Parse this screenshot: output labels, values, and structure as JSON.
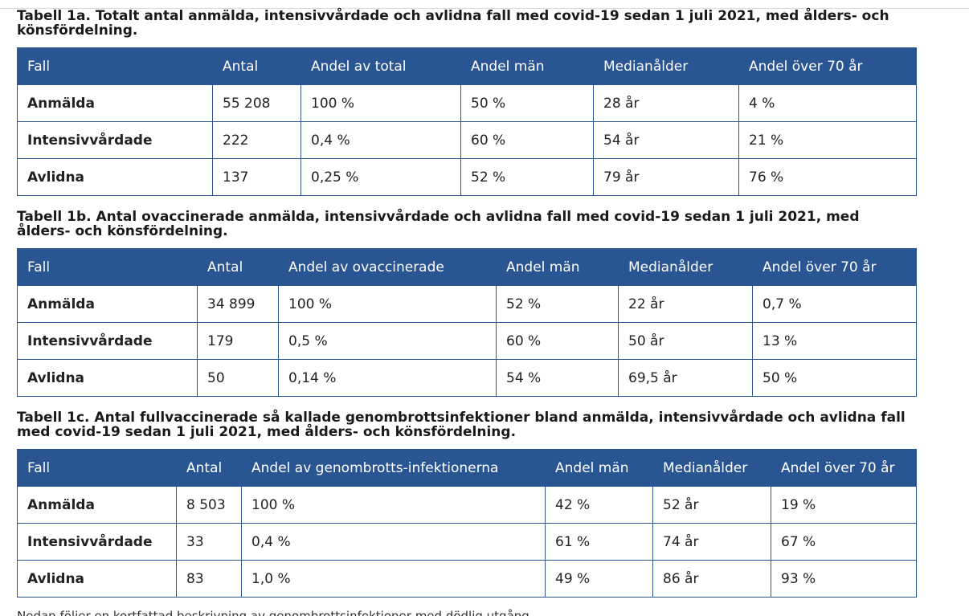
{
  "tables": [
    {
      "caption": "Tabell 1a. Totalt antal anmälda, intensivvårdade och avlidna fall med covid-19 sedan 1 juli 2021, med ålders- och könsfördelning.",
      "headers": [
        "Fall",
        "Antal",
        "Andel av total",
        "Andel män",
        "Medianålder",
        "Andel över 70 år"
      ],
      "rows": [
        [
          "Anmälda",
          "55 208",
          "100 %",
          "50 %",
          "28 år",
          "4 %"
        ],
        [
          "Intensivvårdade",
          "222",
          "0,4 %",
          "60 %",
          "54 år",
          "21 %"
        ],
        [
          "Avlidna",
          "137",
          "0,25 %",
          "52 %",
          "79 år",
          "76 %"
        ]
      ]
    },
    {
      "caption": "Tabell 1b. Antal ovaccinerade anmälda, intensivvårdade och avlidna fall med covid-19 sedan 1 juli 2021, med ålders- och könsfördelning.",
      "headers": [
        "Fall",
        "Antal",
        "Andel av ovaccinerade",
        "Andel män",
        "Medianålder",
        "Andel över 70 år"
      ],
      "rows": [
        [
          "Anmälda",
          "34 899",
          "100 %",
          "52 %",
          "22 år",
          "0,7 %"
        ],
        [
          "Intensivvårdade",
          "179",
          "0,5 %",
          "60 %",
          "50 år",
          "13 %"
        ],
        [
          "Avlidna",
          "50",
          "0,14 %",
          "54 %",
          "69,5 år",
          "50 %"
        ]
      ]
    },
    {
      "caption": "Tabell 1c. Antal fullvaccinerade så kallade genombrottsinfektioner bland anmälda, intensivvårdade och avlidna fall med covid-19 sedan 1 juli 2021, med ålders- och könsfördelning.",
      "headers": [
        "Fall",
        "Antal",
        "Andel av genombrotts-infektionerna",
        "Andel män",
        "Medianålder",
        "Andel över 70 år"
      ],
      "rows": [
        [
          "Anmälda",
          "8 503",
          "100 %",
          "42 %",
          "52 år",
          "19 %"
        ],
        [
          "Intensivvårdade",
          "33",
          "0,4 %",
          "61 %",
          "74 år",
          "67 %"
        ],
        [
          "Avlidna",
          "83",
          "1,0 %",
          "49 %",
          "86 år",
          "93 %"
        ]
      ]
    }
  ],
  "footnote": "Nedan följer en kortfattad beskrivning av genombrottsinfektioner med dödlig utgång"
}
